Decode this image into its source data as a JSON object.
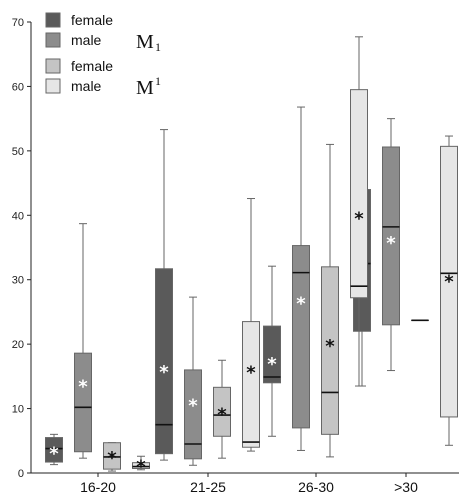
{
  "chart_data": {
    "type": "box",
    "categories": [
      "16-20",
      "21-25",
      "26-30",
      ">30"
    ],
    "ylim": [
      0,
      70
    ],
    "yticks": [
      0,
      10,
      20,
      30,
      40,
      50,
      60,
      70
    ],
    "grid": false,
    "legend": {
      "placement": "top-left",
      "groups": [
        {
          "label_main": "M",
          "label_sub": "1",
          "sub_position": "subscript",
          "entries": [
            {
              "label": "female",
              "color": "#5a5a5a"
            },
            {
              "label": "male",
              "color": "#8c8c8c"
            }
          ]
        },
        {
          "label_main": "M",
          "label_sub": "1",
          "sub_position": "superscript",
          "entries": [
            {
              "label": "female",
              "color": "#c4c4c4"
            },
            {
              "label": "male",
              "color": "#e6e6e6"
            }
          ]
        }
      ]
    },
    "series": [
      {
        "color": "#5a5a5a",
        "mean_color": "#ffffff",
        "boxes": [
          {
            "min": 1.3,
            "q1": 1.7,
            "median": 3.8,
            "q3": 5.5,
            "max": 6.0,
            "mean": 3.3
          },
          {
            "min": 2.0,
            "q1": 3.0,
            "median": 7.5,
            "q3": 31.7,
            "max": 53.3,
            "mean": 16.0
          },
          {
            "min": 5.7,
            "q1": 14.0,
            "median": 14.9,
            "q3": 22.8,
            "max": 32.1,
            "mean": 17.2
          },
          {
            "min": 13.5,
            "q1": 22.0,
            "median": 32.5,
            "q3": 44.0,
            "max": 47.8,
            "mean": 32.0
          }
        ]
      },
      {
        "color": "#8c8c8c",
        "mean_color": "#ffffff",
        "boxes": [
          {
            "min": 2.3,
            "q1": 3.3,
            "median": 10.2,
            "q3": 18.6,
            "max": 38.7,
            "mean": 13.7
          },
          {
            "min": 1.2,
            "q1": 2.2,
            "median": 4.5,
            "q3": 16.0,
            "max": 27.3,
            "mean": 10.8
          },
          {
            "min": 3.5,
            "q1": 7.0,
            "median": 31.1,
            "q3": 35.3,
            "max": 56.8,
            "mean": 26.6
          },
          {
            "min": 15.9,
            "q1": 23.0,
            "median": 38.2,
            "q3": 50.6,
            "max": 55.0,
            "mean": 36.0
          }
        ]
      },
      {
        "color": "#c4c4c4",
        "mean_color": "#111111",
        "boxes": [
          {
            "min": 0.3,
            "q1": 0.6,
            "median": 2.5,
            "q3": 4.7,
            "max": 4.7,
            "mean": 2.6
          },
          {
            "min": 2.3,
            "q1": 5.7,
            "median": 9.0,
            "q3": 13.3,
            "max": 17.5,
            "mean": 9.4
          },
          {
            "min": 2.5,
            "q1": 6.0,
            "median": 12.5,
            "q3": 32.0,
            "max": 51.0,
            "mean": 20.0
          },
          {
            "min": 23.7,
            "q1": 23.7,
            "median": 23.7,
            "q3": 23.7,
            "max": 23.7,
            "mean": null
          }
        ]
      },
      {
        "color": "#e6e6e6",
        "mean_color": "#111111",
        "boxes": [
          {
            "min": 0.5,
            "q1": 0.7,
            "median": 1.0,
            "q3": 1.6,
            "max": 2.6,
            "mean": 1.3
          },
          {
            "min": 3.4,
            "q1": 4.0,
            "median": 4.8,
            "q3": 23.5,
            "max": 42.6,
            "mean": 15.9
          },
          {
            "min": 13.5,
            "q1": 27.2,
            "median": 29.0,
            "q3": 59.5,
            "max": 67.7,
            "mean": 39.8
          },
          {
            "min": 4.3,
            "q1": 8.7,
            "median": 31.0,
            "q3": 50.7,
            "max": 52.3,
            "mean": 30.0
          }
        ]
      }
    ]
  }
}
